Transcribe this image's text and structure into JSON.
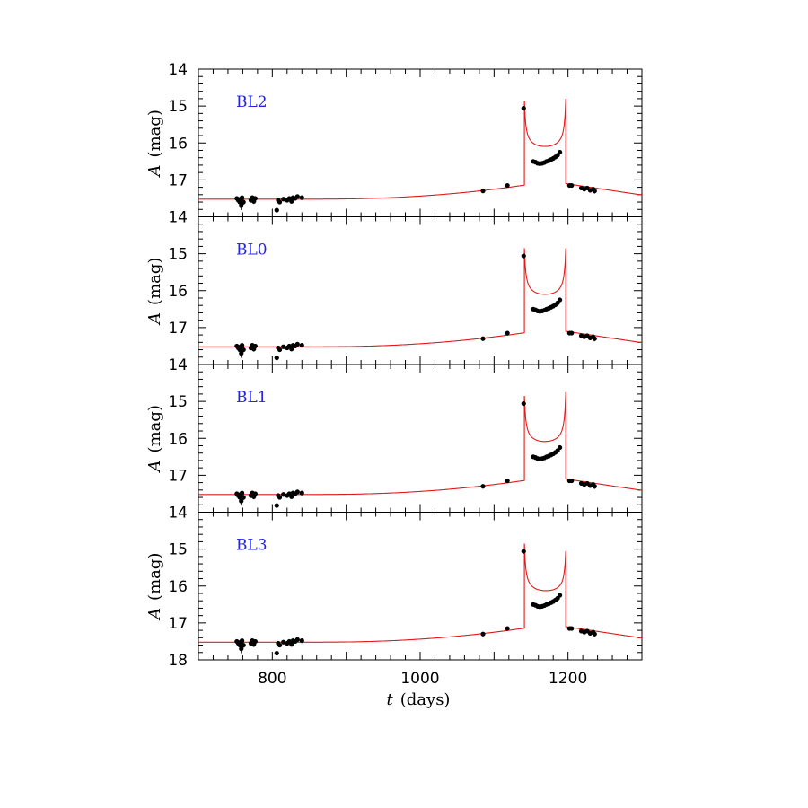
{
  "chart_data": {
    "type": "line",
    "xlabel": {
      "symbol": "t",
      "text": "(days)"
    },
    "ylabel": {
      "symbol": "A",
      "text": "(mag)"
    },
    "xlim": [
      700,
      1300
    ],
    "xticks": [
      800,
      1000,
      1200
    ],
    "ylim_inverted": [
      18,
      14
    ],
    "yticks": [
      14,
      15,
      16,
      17,
      18
    ],
    "colors": {
      "model": "#e21a1a",
      "data": "#000000",
      "label": "#2424e0"
    },
    "model": {
      "baseline": 17.52,
      "caustic1": {
        "t": 1141,
        "peak": 14.85,
        "trough": 16.55
      },
      "caustic2": {
        "t": 1197
      },
      "post_late": 17.4
    },
    "observations": [
      {
        "t": 752,
        "mag": 17.5,
        "err": 0.06
      },
      {
        "t": 754,
        "mag": 17.55,
        "err": 0.07
      },
      {
        "t": 756,
        "mag": 17.6,
        "err": 0.08
      },
      {
        "t": 757,
        "mag": 17.52,
        "err": 0.06
      },
      {
        "t": 758,
        "mag": 17.7,
        "err": 0.12
      },
      {
        "t": 759,
        "mag": 17.48,
        "err": 0.05
      },
      {
        "t": 761,
        "mag": 17.6,
        "err": 0.07
      },
      {
        "t": 771,
        "mag": 17.55,
        "err": 0.06
      },
      {
        "t": 773,
        "mag": 17.48,
        "err": 0.06
      },
      {
        "t": 775,
        "mag": 17.58,
        "err": 0.07
      },
      {
        "t": 777,
        "mag": 17.5,
        "err": 0.05
      },
      {
        "t": 806,
        "mag": 17.82,
        "err": 0.05
      },
      {
        "t": 808,
        "mag": 17.55,
        "err": 0.05
      },
      {
        "t": 810,
        "mag": 17.6,
        "err": 0.06
      },
      {
        "t": 815,
        "mag": 17.52,
        "err": 0.05
      },
      {
        "t": 820,
        "mag": 17.55,
        "err": 0.05
      },
      {
        "t": 823,
        "mag": 17.5,
        "err": 0.06
      },
      {
        "t": 826,
        "mag": 17.58,
        "err": 0.05
      },
      {
        "t": 828,
        "mag": 17.48,
        "err": 0.05
      },
      {
        "t": 831,
        "mag": 17.5,
        "err": 0.05
      },
      {
        "t": 834,
        "mag": 17.45,
        "err": 0.05
      },
      {
        "t": 840,
        "mag": 17.48,
        "err": 0.05
      },
      {
        "t": 1085,
        "mag": 17.3,
        "err": 0.04
      },
      {
        "t": 1118,
        "mag": 17.15,
        "err": 0.04
      },
      {
        "t": 1140,
        "mag": 15.06,
        "err": 0.03
      },
      {
        "t": 1153,
        "mag": 16.5,
        "err": 0.03
      },
      {
        "t": 1156,
        "mag": 16.52,
        "err": 0.03
      },
      {
        "t": 1159,
        "mag": 16.55,
        "err": 0.03
      },
      {
        "t": 1162,
        "mag": 16.56,
        "err": 0.03
      },
      {
        "t": 1165,
        "mag": 16.55,
        "err": 0.03
      },
      {
        "t": 1168,
        "mag": 16.53,
        "err": 0.03
      },
      {
        "t": 1171,
        "mag": 16.5,
        "err": 0.03
      },
      {
        "t": 1174,
        "mag": 16.48,
        "err": 0.03
      },
      {
        "t": 1177,
        "mag": 16.45,
        "err": 0.03
      },
      {
        "t": 1180,
        "mag": 16.42,
        "err": 0.03
      },
      {
        "t": 1183,
        "mag": 16.38,
        "err": 0.03
      },
      {
        "t": 1186,
        "mag": 16.33,
        "err": 0.03
      },
      {
        "t": 1189,
        "mag": 16.25,
        "err": 0.03
      },
      {
        "t": 1202,
        "mag": 17.15,
        "err": 0.04
      },
      {
        "t": 1205,
        "mag": 17.15,
        "err": 0.04
      },
      {
        "t": 1218,
        "mag": 17.22,
        "err": 0.05
      },
      {
        "t": 1222,
        "mag": 17.25,
        "err": 0.05
      },
      {
        "t": 1226,
        "mag": 17.22,
        "err": 0.05
      },
      {
        "t": 1230,
        "mag": 17.28,
        "err": 0.06
      },
      {
        "t": 1234,
        "mag": 17.25,
        "err": 0.06
      },
      {
        "t": 1236,
        "mag": 17.3,
        "err": 0.07
      }
    ],
    "panels": [
      {
        "label": "BL2",
        "peak2": 14.8
      },
      {
        "label": "BL0",
        "peak2": 14.85
      },
      {
        "label": "BL1",
        "peak2": 14.75
      },
      {
        "label": "BL3",
        "peak2": 15.05
      }
    ]
  }
}
